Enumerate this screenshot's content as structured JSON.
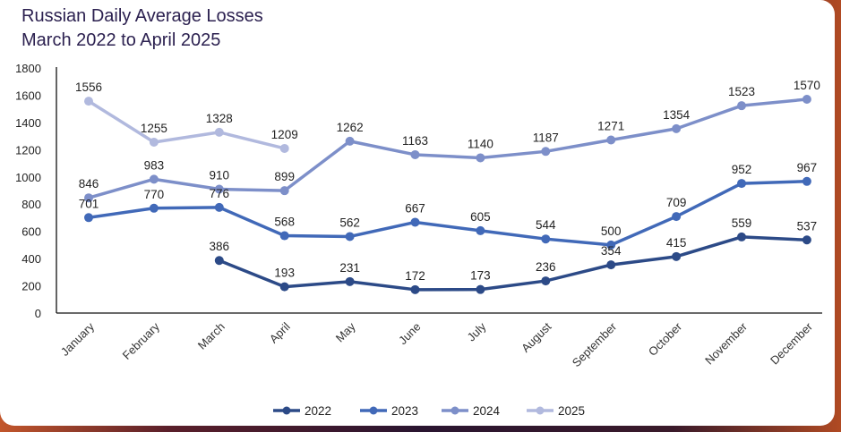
{
  "chart_data": {
    "type": "line",
    "title": [
      "Russian Daily Average Losses",
      "March 2022 to April 2025"
    ],
    "categories": [
      "January",
      "February",
      "March",
      "April",
      "May",
      "June",
      "July",
      "August",
      "September",
      "October",
      "November",
      "December"
    ],
    "ylim": [
      0,
      1800
    ],
    "yticks": [
      0,
      200,
      400,
      600,
      800,
      1000,
      1200,
      1400,
      1600,
      1800
    ],
    "grid": false,
    "legend_position": "bottom",
    "series": [
      {
        "name": "2022",
        "color": "#2c4a87",
        "values": [
          null,
          null,
          386,
          193,
          231,
          172,
          173,
          236,
          354,
          415,
          559,
          537
        ]
      },
      {
        "name": "2023",
        "color": "#4169b8",
        "values": [
          701,
          770,
          776,
          568,
          562,
          667,
          605,
          544,
          500,
          709,
          952,
          967
        ]
      },
      {
        "name": "2024",
        "color": "#7d8fc9",
        "values": [
          846,
          983,
          910,
          899,
          1262,
          1163,
          1140,
          1187,
          1271,
          1354,
          1523,
          1570
        ]
      },
      {
        "name": "2025",
        "color": "#b1b9de",
        "values": [
          1556,
          1255,
          1328,
          1209,
          null,
          null,
          null,
          null,
          null,
          null,
          null,
          null
        ]
      }
    ]
  }
}
